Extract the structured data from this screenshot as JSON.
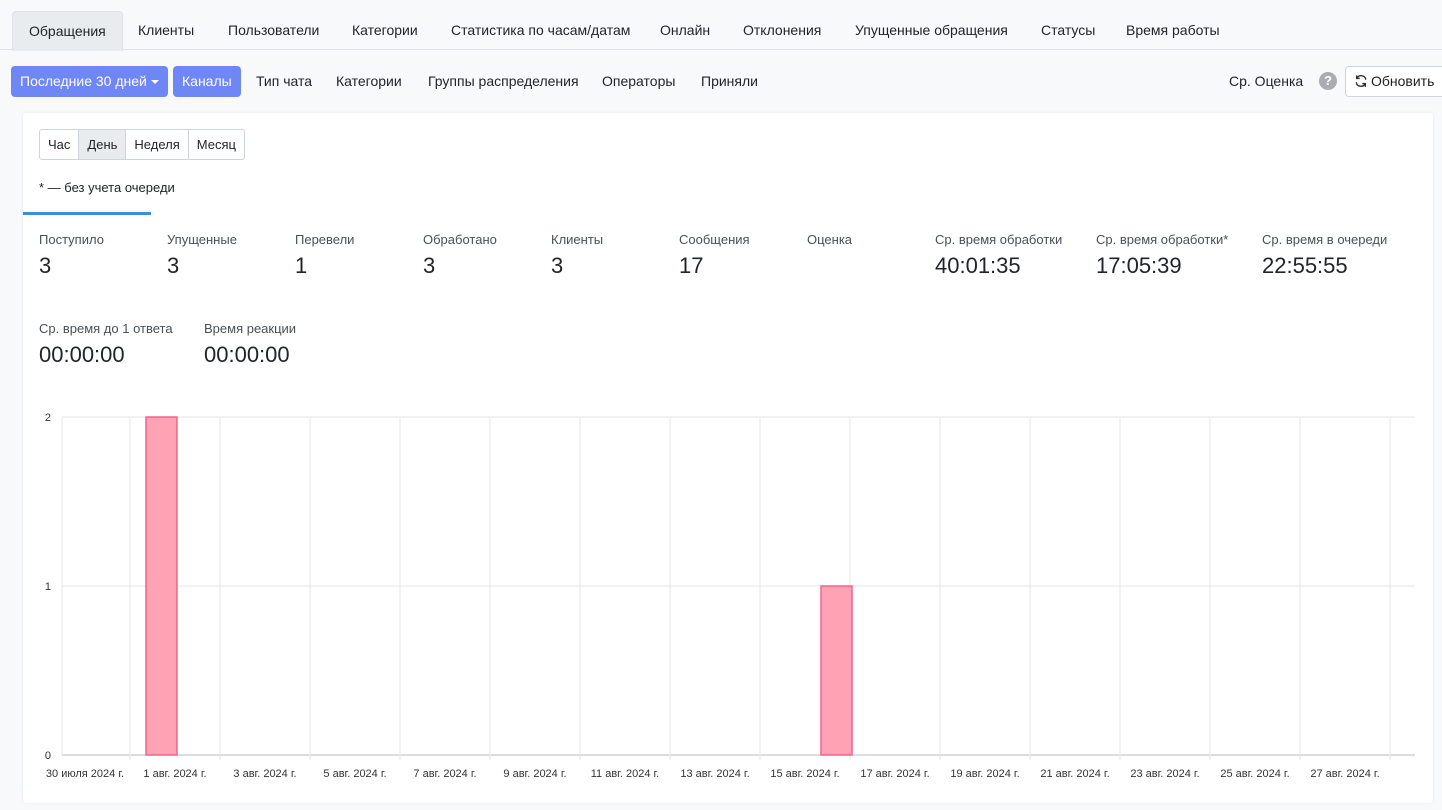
{
  "tabs": [
    "Обращения",
    "Клиенты",
    "Пользователи",
    "Категории",
    "Статистика по часам/датам",
    "Онлайн",
    "Отклонения",
    "Упущенные обращения",
    "Статусы",
    "Время работы"
  ],
  "toolbar": {
    "period_label": "Последние 30 дней",
    "channels_label": "Каналы",
    "links": [
      "Тип чата",
      "Категории",
      "Группы распределения",
      "Операторы",
      "Приняли"
    ],
    "avg_rating_label": "Ср. Оценка",
    "help_glyph": "?",
    "refresh_label": "Обновить"
  },
  "granularity": [
    "Час",
    "День",
    "Неделя",
    "Месяц"
  ],
  "note": "* — без учета очереди",
  "stats": [
    {
      "label": "Поступило",
      "value": "3"
    },
    {
      "label": "Упущенные",
      "value": "3"
    },
    {
      "label": "Перевели",
      "value": "1"
    },
    {
      "label": "Обработано",
      "value": "3"
    },
    {
      "label": "Клиенты",
      "value": "3"
    },
    {
      "label": "Сообщения",
      "value": "17"
    },
    {
      "label": "Оценка",
      "value": ""
    },
    {
      "label": "Ср. время обработки",
      "value": "40:01:35"
    },
    {
      "label": "Ср. время обработки*",
      "value": "17:05:39"
    },
    {
      "label": "Ср. время в очереди",
      "value": "22:55:55"
    },
    {
      "label": "Ср. время до 1 ответа",
      "value": "00:00:00"
    },
    {
      "label": "Время реакции",
      "value": "00:00:00"
    }
  ],
  "colors": {
    "accent": "#6f87f5",
    "bar_fill": "#ffa3b4",
    "bar_stroke": "#f0648a",
    "underline": "#3d8fdc"
  },
  "chart_data": {
    "type": "bar",
    "x_tick_labels": [
      "30 июля 2024 г.",
      "1 авг. 2024 г.",
      "3 авг. 2024 г.",
      "5 авг. 2024 г.",
      "7 авг. 2024 г.",
      "9 авг. 2024 г.",
      "11 авг. 2024 г.",
      "13 авг. 2024 г.",
      "15 авг. 2024 г.",
      "17 авг. 2024 г.",
      "19 авг. 2024 г.",
      "21 авг. 2024 г.",
      "23 авг. 2024 г.",
      "25 авг. 2024 г.",
      "27 авг. 2024 г."
    ],
    "bars": [
      {
        "date": "1 авг. 2024 г.",
        "value": 2
      },
      {
        "date": "16 авг. 2024 г.",
        "value": 1
      }
    ],
    "y_ticks": [
      0,
      1,
      2
    ],
    "ylim": [
      0,
      2
    ],
    "grid": true
  }
}
